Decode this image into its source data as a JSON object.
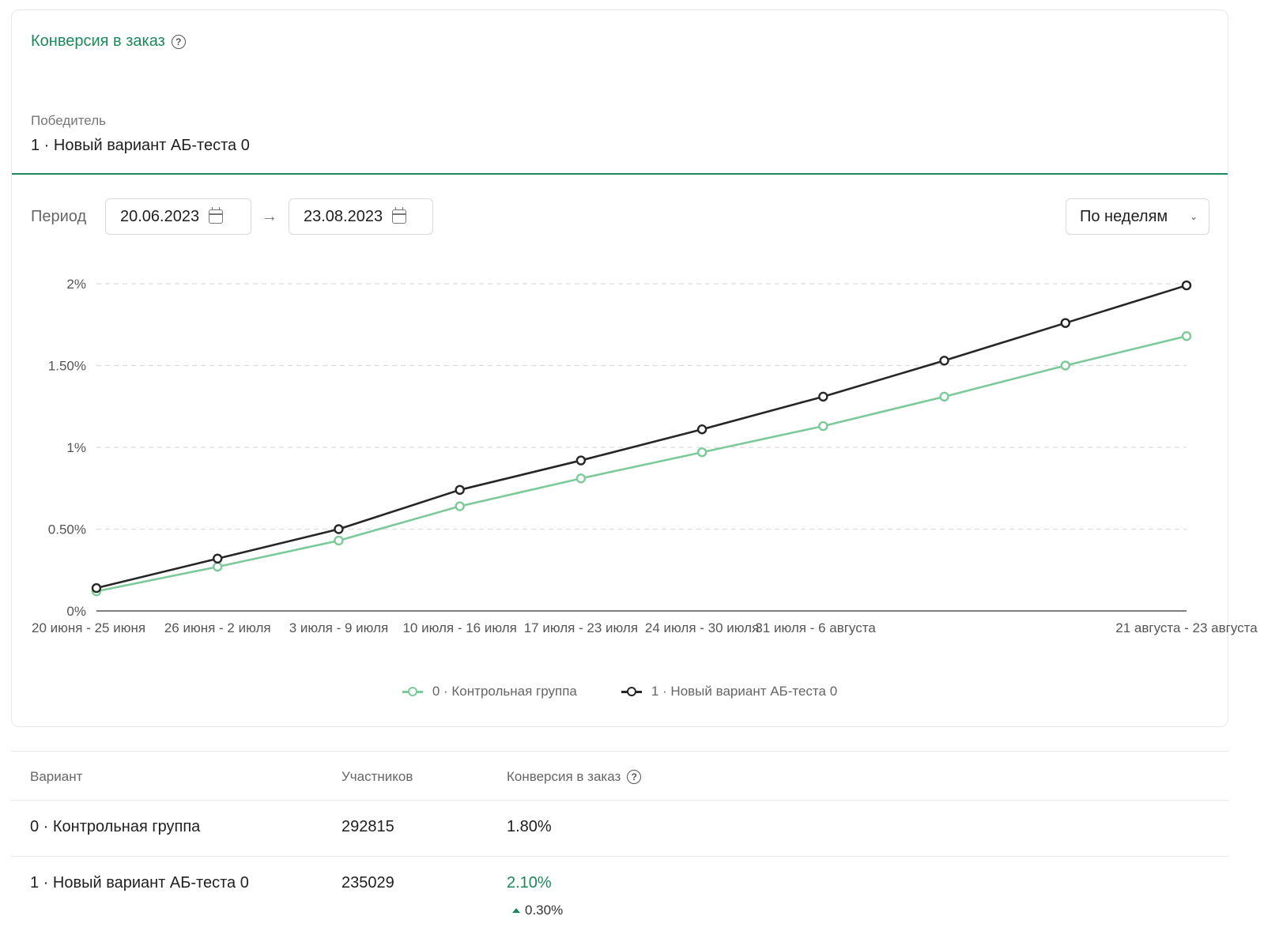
{
  "card": {
    "title": "Конверсия в заказ",
    "winner_label": "Победитель",
    "winner_value": "1 · Новый вариант АБ-теста 0"
  },
  "filters": {
    "period_label": "Период",
    "date_from": "20.06.2023",
    "date_to": "23.08.2023",
    "arrow": "→",
    "granularity": "По неделям"
  },
  "colors": {
    "accent": "#1a8a5a",
    "series_control": "#7cc99a",
    "series_variant": "#262626"
  },
  "chart_data": {
    "type": "line",
    "title": "",
    "xlabel": "",
    "ylabel": "",
    "ylim": [
      0,
      2
    ],
    "yticks": [
      0,
      0.5,
      1,
      1.5,
      2
    ],
    "ytick_labels": [
      "0%",
      "0.50%",
      "1%",
      "1.50%",
      "2%"
    ],
    "categories": [
      "20 июня - 25 июня",
      "26 июня - 2 июля",
      "3 июля - 9 июля",
      "10 июля - 16 июля",
      "17 июля - 23 июля",
      "24 июля - 30 июля",
      "31 июля - 6 августа",
      "",
      "",
      "21 августа - 23 августа"
    ],
    "grid": true,
    "legend_position": "bottom-center",
    "series": [
      {
        "name": "0 · Контрольная группа",
        "values": [
          0.12,
          0.27,
          0.43,
          0.64,
          0.81,
          0.97,
          1.13,
          1.31,
          1.5,
          1.68
        ]
      },
      {
        "name": "1 · Новый вариант АБ-теста 0",
        "values": [
          0.14,
          0.32,
          0.5,
          0.74,
          0.92,
          1.11,
          1.31,
          1.53,
          1.76,
          1.99
        ]
      }
    ]
  },
  "table": {
    "headers": {
      "variant": "Вариант",
      "participants": "Участников",
      "conversion": "Конверсия в заказ"
    },
    "rows": [
      {
        "variant": "0 · Контрольная группа",
        "participants": "292815",
        "conversion": "1.80%"
      },
      {
        "variant": "1 · Новый вариант АБ-теста 0",
        "participants": "235029",
        "conversion": "2.10%",
        "delta": "0.30%"
      }
    ]
  }
}
